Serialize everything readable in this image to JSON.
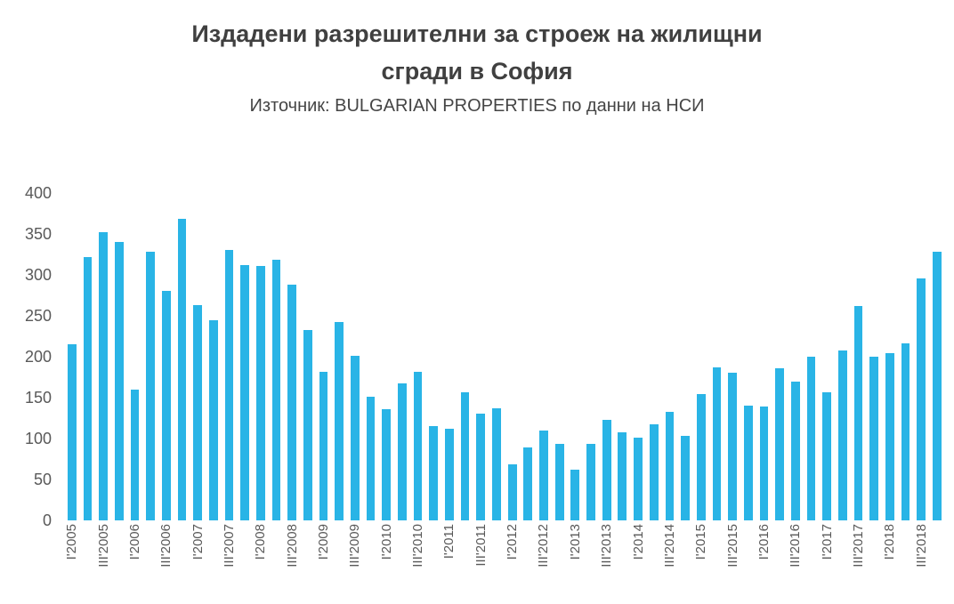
{
  "header": {
    "title_line1": "Издадени разрешителни за строеж на жилищни",
    "title_line2": "сгради в София",
    "subtitle": "Източник: BULGARIAN PROPERTIES по данни на НСИ"
  },
  "chart_data": {
    "type": "bar",
    "title": "Издадени разрешителни за строеж на жилищни сгради в София",
    "subtitle": "Източник: BULGARIAN PROPERTIES по данни на НСИ",
    "bar_color": "#29b4e6",
    "grid": false,
    "legend": "none",
    "ylim": [
      0,
      400
    ],
    "yticks": [
      400,
      350,
      300,
      250,
      200,
      150,
      100,
      50,
      0
    ],
    "x_tick_note": "only quarters I and III are labeled, rotated 270 degrees",
    "categories": [
      "I'2005",
      "II'2005",
      "III'2005",
      "IV'2005",
      "I'2006",
      "II'2006",
      "III'2006",
      "IV'2006",
      "I'2007",
      "II'2007",
      "III'2007",
      "IV'2007",
      "I'2008",
      "II'2008",
      "III'2008",
      "IV'2008",
      "I'2009",
      "II'2009",
      "III'2009",
      "IV'2009",
      "I'2010",
      "II'2010",
      "III'2010",
      "IV'2010",
      "I'2011",
      "II'2011",
      "III'2011",
      "IV'2011",
      "I'2012",
      "II'2012",
      "III'2012",
      "IV'2012",
      "I'2013",
      "II'2013",
      "III'2013",
      "IV'2013",
      "I'2014",
      "II'2014",
      "III'2014",
      "IV'2014",
      "I'2015",
      "II'2015",
      "III'2015",
      "IV'2015",
      "I'2016",
      "II'2016",
      "III'2016",
      "IV'2016",
      "I'2017",
      "II'2017",
      "III'2017",
      "IV'2017",
      "I'2018",
      "II'2018",
      "III'2018",
      "IV'2018"
    ],
    "values": [
      215,
      322,
      352,
      340,
      160,
      328,
      280,
      368,
      263,
      245,
      330,
      312,
      311,
      319,
      288,
      233,
      182,
      242,
      201,
      151,
      136,
      167,
      181,
      115,
      112,
      157,
      130,
      137,
      68,
      89,
      110,
      94,
      62,
      93,
      123,
      108,
      101,
      117,
      133,
      103,
      154,
      187,
      180,
      140,
      139,
      186,
      170,
      200,
      156,
      208,
      262,
      200,
      204,
      216,
      296,
      328
    ]
  }
}
